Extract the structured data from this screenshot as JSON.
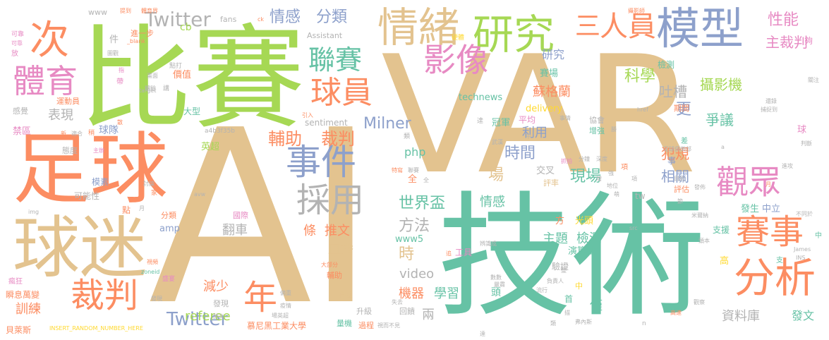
{
  "palette": {
    "tan": "#e3c38f",
    "green": "#a6d854",
    "orange": "#fc8d62",
    "teal": "#66c2a5",
    "blue": "#8da0cb",
    "pink": "#e78ac3",
    "yellow": "#ffd92f",
    "gray": "#b3b3b3"
  },
  "words": [
    {
      "text": "AI",
      "weight": 100,
      "color": "tan"
    },
    {
      "text": "VAR",
      "weight": 96,
      "color": "tan"
    },
    {
      "text": "比賽",
      "weight": 92,
      "color": "green"
    },
    {
      "text": "技術",
      "weight": 90,
      "color": "teal"
    },
    {
      "text": "足球",
      "weight": 70,
      "color": "orange"
    },
    {
      "text": "球迷",
      "weight": 56,
      "color": "tan"
    },
    {
      "text": "模型",
      "weight": 46,
      "color": "blue"
    },
    {
      "text": "研究",
      "weight": 44,
      "color": "green"
    },
    {
      "text": "情緒",
      "weight": 44,
      "color": "tan"
    },
    {
      "text": "人員",
      "weight": 40,
      "color": "orange"
    },
    {
      "text": "分析",
      "weight": 42,
      "color": "orange"
    },
    {
      "text": "體育",
      "weight": 36,
      "color": "pink"
    },
    {
      "text": "次",
      "weight": 34,
      "color": "orange"
    },
    {
      "text": "事件",
      "weight": 34,
      "color": "blue"
    },
    {
      "text": "採用",
      "weight": 34,
      "color": "gray"
    },
    {
      "text": "球員",
      "weight": 30,
      "color": "orange"
    },
    {
      "text": "裁判",
      "weight": 32,
      "color": "orange"
    },
    {
      "text": "年",
      "weight": 32,
      "color": "orange"
    },
    {
      "text": "賽事",
      "weight": 32,
      "color": "orange"
    },
    {
      "text": "觀眾",
      "weight": 30,
      "color": "pink"
    },
    {
      "text": "影像",
      "weight": 30,
      "color": "pink"
    },
    {
      "text": "聯賽",
      "weight": 28,
      "color": "teal"
    },
    {
      "text": "三",
      "weight": 26,
      "color": "orange"
    },
    {
      "text": "Twitter",
      "weight": 20,
      "color": "gray"
    },
    {
      "text": "輔助",
      "weight": 18,
      "color": "orange"
    },
    {
      "text": "裁判",
      "weight": 18,
      "color": "orange"
    },
    {
      "text": "情感",
      "weight": 16,
      "color": "blue"
    },
    {
      "text": "分類",
      "weight": 16,
      "color": "blue"
    },
    {
      "text": "Milner",
      "weight": 16,
      "color": "blue"
    },
    {
      "text": "Twitter",
      "weight": 18,
      "color": "blue"
    },
    {
      "text": "世界盃",
      "weight": 16,
      "color": "teal"
    },
    {
      "text": "方法",
      "weight": 16,
      "color": "gray"
    },
    {
      "text": "場",
      "weight": 16,
      "color": "tan"
    },
    {
      "text": "時間",
      "weight": 16,
      "color": "blue"
    },
    {
      "text": "現場",
      "weight": 16,
      "color": "teal"
    },
    {
      "text": "科學",
      "weight": 16,
      "color": "green"
    },
    {
      "text": "性能",
      "weight": 16,
      "color": "pink"
    },
    {
      "text": "主裁判",
      "weight": 16,
      "color": "pink"
    },
    {
      "text": "吐槽",
      "weight": 16,
      "color": "gray"
    },
    {
      "text": "攝影機",
      "weight": 16,
      "color": "green"
    },
    {
      "text": "爭議",
      "weight": 16,
      "color": "teal"
    },
    {
      "text": "犯規",
      "weight": 16,
      "color": "orange"
    },
    {
      "text": "相關",
      "weight": 16,
      "color": "blue"
    },
    {
      "text": "蘇格蘭",
      "weight": 14,
      "color": "orange"
    },
    {
      "text": "更",
      "weight": 16,
      "color": "blue"
    },
    {
      "text": "表現",
      "weight": 14,
      "color": "gray"
    },
    {
      "text": "球隊",
      "weight": 12,
      "color": "blue"
    },
    {
      "text": "sentiment",
      "weight": 10,
      "color": "gray"
    },
    {
      "text": "php",
      "weight": 12,
      "color": "teal"
    },
    {
      "text": "利用",
      "weight": 14,
      "color": "blue"
    },
    {
      "text": "主題",
      "weight": 14,
      "color": "teal"
    },
    {
      "text": "檢測",
      "weight": 14,
      "color": "teal"
    },
    {
      "text": "情感",
      "weight": 14,
      "color": "teal"
    },
    {
      "text": "推文",
      "weight": 14,
      "color": "orange"
    },
    {
      "text": "條",
      "weight": 14,
      "color": "orange"
    },
    {
      "text": "直播",
      "weight": 14,
      "color": "tan"
    },
    {
      "text": "翻車",
      "weight": 14,
      "color": "gray"
    },
    {
      "text": "video",
      "weight": 14,
      "color": "gray"
    },
    {
      "text": "時",
      "weight": 14,
      "color": "tan"
    },
    {
      "text": "減少",
      "weight": 14,
      "color": "orange"
    },
    {
      "text": "機器",
      "weight": 14,
      "color": "orange"
    },
    {
      "text": "學習",
      "weight": 14,
      "color": "teal"
    },
    {
      "text": "兩",
      "weight": 14,
      "color": "gray"
    },
    {
      "text": "頭",
      "weight": 12,
      "color": "teal"
    },
    {
      "text": "僅",
      "weight": 14,
      "color": "teal"
    },
    {
      "text": "referee",
      "weight": 14,
      "color": "green"
    },
    {
      "text": "訓練",
      "weight": 14,
      "color": "orange"
    },
    {
      "text": "資料庫",
      "weight": 14,
      "color": "gray"
    },
    {
      "text": "發文",
      "weight": 14,
      "color": "teal"
    },
    {
      "text": "慕尼黑工業大學",
      "weight": 10,
      "color": "orange"
    },
    {
      "text": "technews",
      "weight": 10,
      "color": "teal"
    },
    {
      "text": "delivery",
      "weight": 10,
      "color": "yellow"
    },
    {
      "text": "www5",
      "weight": 10,
      "color": "teal"
    },
    {
      "text": "amp",
      "weight": 10,
      "color": "blue"
    },
    {
      "text": "球",
      "weight": 10,
      "color": "pink"
    },
    {
      "text": "發生",
      "weight": 10,
      "color": "teal"
    },
    {
      "text": "中立",
      "weight": 10,
      "color": "blue"
    },
    {
      "text": "支援",
      "weight": 10,
      "color": "teal"
    },
    {
      "text": "光頭",
      "weight": 10,
      "color": "yellow"
    },
    {
      "text": "方",
      "weight": 10,
      "color": "orange"
    },
    {
      "text": "交叉",
      "weight": 10,
      "color": "gray"
    },
    {
      "text": "評率",
      "weight": 10,
      "color": "tan"
    },
    {
      "text": "工具",
      "weight": 10,
      "color": "pink"
    },
    {
      "text": "演算法",
      "weight": 10,
      "color": "teal"
    },
    {
      "text": "驗證",
      "weight": 10,
      "color": "gray"
    },
    {
      "text": "冠軍",
      "weight": 10,
      "color": "teal"
    },
    {
      "text": "平均",
      "weight": 10,
      "color": "pink"
    },
    {
      "text": "賽場",
      "weight": 10,
      "color": "teal"
    },
    {
      "text": "研究",
      "weight": 12,
      "color": "blue"
    },
    {
      "text": "價值",
      "weight": 10,
      "color": "orange"
    },
    {
      "text": "大型",
      "weight": 10,
      "color": "teal"
    },
    {
      "text": "英超",
      "weight": 10,
      "color": "green"
    },
    {
      "text": "cb",
      "weight": 10,
      "color": "green"
    },
    {
      "text": "檢測",
      "weight": 10,
      "color": "teal"
    },
    {
      "text": "期間",
      "weight": 8,
      "color": "orange"
    },
    {
      "text": "協會",
      "weight": 8,
      "color": "gray"
    },
    {
      "text": "增強",
      "weight": 8,
      "color": "teal"
    },
    {
      "text": "評估",
      "weight": 8,
      "color": "orange"
    },
    {
      "text": "事",
      "weight": 8,
      "color": "blue"
    },
    {
      "text": "高",
      "weight": 8,
      "color": "yellow"
    },
    {
      "text": "國際",
      "weight": 8,
      "color": "pink"
    },
    {
      "text": "升級",
      "weight": 8,
      "color": "gray"
    },
    {
      "text": "量機",
      "weight": 8,
      "color": "teal"
    },
    {
      "text": "過程",
      "weight": 8,
      "color": "orange"
    },
    {
      "text": "消極",
      "weight": 8,
      "color": "tan"
    },
    {
      "text": "回饋",
      "weight": 8,
      "color": "gray"
    },
    {
      "text": "首",
      "weight": 8,
      "color": "teal"
    },
    {
      "text": "中",
      "weight": 8,
      "color": "yellow"
    },
    {
      "text": "可能性",
      "weight": 8,
      "color": "gray"
    },
    {
      "text": "模素",
      "weight": 8,
      "color": "blue"
    },
    {
      "text": "點",
      "weight": 8,
      "color": "orange"
    },
    {
      "text": "分類",
      "weight": 8,
      "color": "orange"
    },
    {
      "text": "發現",
      "weight": 8,
      "color": "gray"
    },
    {
      "text": "輔助",
      "weight": 8,
      "color": "orange"
    },
    {
      "text": "瞬息萬變",
      "weight": 8,
      "color": "orange"
    },
    {
      "text": "瘋狂",
      "weight": 8,
      "color": "pink"
    },
    {
      "text": "盛宴",
      "weight": 6,
      "color": "pink"
    },
    {
      "text": "貝萊斯",
      "weight": 8,
      "color": "orange"
    },
    {
      "text": "禁區",
      "weight": 10,
      "color": "pink"
    },
    {
      "text": "感覺",
      "weight": 8,
      "color": "gray"
    },
    {
      "text": "態度",
      "weight": 8,
      "color": "gray"
    },
    {
      "text": "運動員",
      "weight": 8,
      "color": "orange"
    },
    {
      "text": "進一步",
      "weight": 8,
      "color": "orange"
    },
    {
      "text": "Assistant",
      "weight": 8,
      "color": "gray"
    },
    {
      "text": "fans",
      "weight": 8,
      "color": "gray"
    },
    {
      "text": "www",
      "weight": 8,
      "color": "gray"
    },
    {
      "text": "可靠",
      "weight": 6,
      "color": "pink"
    },
    {
      "text": "全",
      "weight": 10,
      "color": "orange"
    },
    {
      "text": "tw",
      "weight": 10,
      "color": "gray"
    },
    {
      "text": "a4b3f35b",
      "weight": 6,
      "color": "gray"
    },
    {
      "text": "INSERT_RANDOM_NUMBER_HERE",
      "weight": 6,
      "color": "yellow"
    },
    {
      "text": "大部分",
      "weight": 6,
      "color": "orange"
    },
    {
      "text": "稍",
      "weight": 6,
      "color": "orange"
    },
    {
      "text": "講",
      "weight": 6,
      "color": "gray"
    },
    {
      "text": "點打",
      "weight": 6,
      "color": "gray"
    },
    {
      "text": "zoneid",
      "weight": 6,
      "color": "teal"
    },
    {
      "text": "img",
      "weight": 6,
      "color": "gray"
    },
    {
      "text": "ck",
      "weight": 6,
      "color": "orange"
    },
    {
      "text": "href",
      "weight": 6,
      "color": "gray"
    },
    {
      "text": "James",
      "weight": 6,
      "color": "gray"
    },
    {
      "text": "src",
      "weight": 6,
      "color": "gray"
    },
    {
      "text": "_blank",
      "weight": 6,
      "color": "orange"
    },
    {
      "text": "target",
      "weight": 6,
      "color": "gray"
    },
    {
      "text": "體育界",
      "weight": 6,
      "color": "orange"
    },
    {
      "text": "攝影師",
      "weight": 6,
      "color": "orange"
    },
    {
      "text": "夠",
      "weight": 8,
      "color": "pink"
    },
    {
      "text": "差",
      "weight": 8,
      "color": "teal"
    },
    {
      "text": "達",
      "weight": 6,
      "color": "gray"
    },
    {
      "text": "類",
      "weight": 6,
      "color": "gray"
    },
    {
      "text": "硬體",
      "weight": 6,
      "color": "yellow"
    },
    {
      "text": "辨識成",
      "weight": 6,
      "color": "gray"
    },
    {
      "text": "負責人",
      "weight": 6,
      "color": "gray"
    },
    {
      "text": "流行",
      "weight": 6,
      "color": "gray"
    },
    {
      "text": "整",
      "weight": 6,
      "color": "gray"
    },
    {
      "text": "判斷",
      "weight": 6,
      "color": "gray"
    },
    {
      "text": "進攻",
      "weight": 6,
      "color": "gray"
    },
    {
      "text": "項",
      "weight": 6,
      "color": "orange"
    },
    {
      "text": "目的",
      "weight": 6,
      "color": "gray"
    },
    {
      "text": "不同於",
      "weight": 6,
      "color": "gray"
    },
    {
      "text": "高速",
      "weight": 6,
      "color": "orange"
    },
    {
      "text": "觀察",
      "weight": 6,
      "color": "gray"
    },
    {
      "text": "弗內斯",
      "weight": 6,
      "color": "gray"
    },
    {
      "text": "抓拍",
      "weight": 6,
      "color": "pink"
    },
    {
      "text": "地位",
      "weight": 6,
      "color": "gray"
    },
    {
      "text": "勝",
      "weight": 6,
      "color": "gray"
    },
    {
      "text": "n",
      "weight": 6,
      "color": "gray"
    },
    {
      "text": "中",
      "weight": 6,
      "color": "gray"
    },
    {
      "text": "視而不見",
      "weight": 6,
      "color": "gray"
    },
    {
      "text": "失去",
      "weight": 6,
      "color": "gray"
    },
    {
      "text": "帶",
      "weight": 6,
      "color": "pink"
    },
    {
      "text": "件",
      "weight": 10,
      "color": "gray"
    },
    {
      "text": "圖觀",
      "weight": 6,
      "color": "gray"
    },
    {
      "text": "提到",
      "weight": 6,
      "color": "orange"
    },
    {
      "text": "散",
      "weight": 6,
      "color": "orange"
    },
    {
      "text": "放",
      "weight": 6,
      "color": "pink"
    },
    {
      "text": "家",
      "weight": 6,
      "color": "orange"
    },
    {
      "text": "討論",
      "weight": 6,
      "color": "gray"
    },
    {
      "text": "中",
      "weight": 8,
      "color": "teal"
    },
    {
      "text": "支",
      "weight": 8,
      "color": "teal"
    },
    {
      "text": "追",
      "weight": 6,
      "color": "orange"
    },
    {
      "text": "引入",
      "weight": 6,
      "color": "orange"
    },
    {
      "text": "主辦",
      "weight": 6,
      "color": "pink"
    },
    {
      "text": "足球俱樂部",
      "weight": 6,
      "color": "gray"
    },
    {
      "text": "分鐘",
      "weight": 6,
      "color": "gray"
    },
    {
      "text": "特寫",
      "weight": 6,
      "color": "orange"
    },
    {
      "text": "聯賽",
      "weight": 6,
      "color": "gray"
    },
    {
      "text": "肺炎",
      "weight": 6,
      "color": "gray"
    },
    {
      "text": "偏重",
      "weight": 6,
      "color": "gray"
    },
    {
      "text": "疫情",
      "weight": 6,
      "color": "gray"
    },
    {
      "text": "場英超",
      "weight": 6,
      "color": "gray"
    },
    {
      "text": "畫面",
      "weight": 6,
      "color": "gray"
    },
    {
      "text": "發現",
      "weight": 6,
      "color": "gray"
    },
    {
      "text": "a",
      "weight": 6,
      "color": "gray"
    },
    {
      "text": "avw",
      "weight": 6,
      "color": "gray"
    },
    {
      "text": "INS",
      "weight": 6,
      "color": "gray"
    },
    {
      "text": "武漢",
      "weight": 6,
      "color": "gray"
    },
    {
      "text": "關注",
      "weight": 6,
      "color": "gray"
    },
    {
      "text": "米爾納",
      "weight": 6,
      "color": "gray"
    },
    {
      "text": "頭本",
      "weight": 6,
      "color": "gray"
    },
    {
      "text": "數數",
      "weight": 6,
      "color": "gray"
    },
    {
      "text": "嚴肅",
      "weight": 6,
      "color": "gray"
    },
    {
      "text": "事情",
      "weight": 6,
      "color": "gray"
    },
    {
      "text": "還錄",
      "weight": 6,
      "color": "gray"
    },
    {
      "text": "捕捉到",
      "weight": 6,
      "color": "gray"
    },
    {
      "text": "新",
      "weight": 6,
      "color": "orange"
    },
    {
      "text": "適合",
      "weight": 6,
      "color": "gray"
    },
    {
      "text": "體驗",
      "weight": 6,
      "color": "gray"
    },
    {
      "text": "視頻",
      "weight": 6,
      "color": "orange"
    },
    {
      "text": "月",
      "weight": 6,
      "color": "gray"
    },
    {
      "text": "可靠",
      "weight": 6,
      "color": "pink"
    },
    {
      "text": "指",
      "weight": 6,
      "color": "pink"
    },
    {
      "text": "月",
      "weight": 6,
      "color": "orange"
    },
    {
      "text": "節",
      "weight": 6,
      "color": "gray"
    },
    {
      "text": "發佈",
      "weight": 6,
      "color": "gray"
    },
    {
      "text": "描",
      "weight": 6,
      "color": "gray"
    },
    {
      "text": "類",
      "weight": 6,
      "color": "gray"
    },
    {
      "text": "達",
      "weight": 6,
      "color": "gray"
    },
    {
      "text": "深度",
      "weight": 6,
      "color": "gray"
    },
    {
      "text": "強",
      "weight": 6,
      "color": "gray"
    },
    {
      "text": "增",
      "weight": 6,
      "color": "gray"
    },
    {
      "text": "全",
      "weight": 6,
      "color": "gray"
    },
    {
      "text": "項",
      "weight": 6,
      "color": "gray"
    },
    {
      "text": "萌",
      "weight": 6,
      "color": "gray"
    }
  ]
}
